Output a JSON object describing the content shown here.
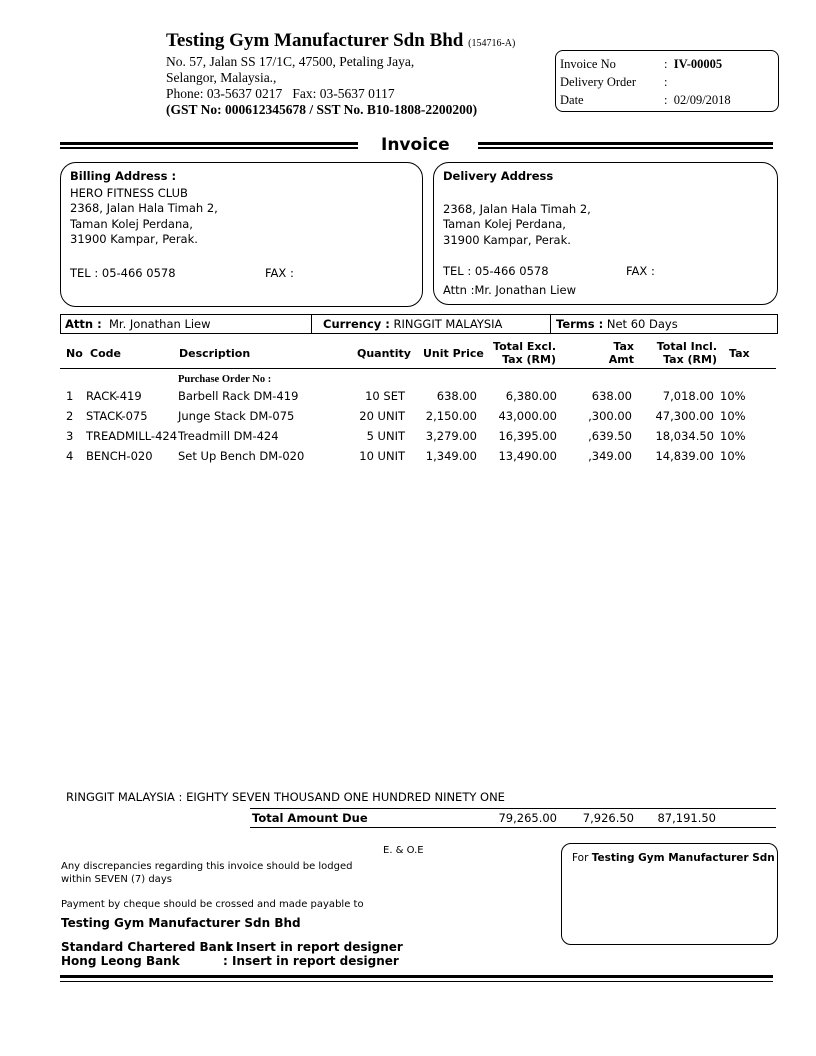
{
  "company": {
    "name": "Testing Gym Manufacturer Sdn Bhd",
    "reg_no": "(154716-A)",
    "address_1": "No. 57, Jalan SS 17/1C, 47500, Petaling Jaya,",
    "address_2": "Selangor, Malaysia.,",
    "phone_fax": "Phone: 03-5637 0217   Fax: 03-5637 0117",
    "tax_ids": "(GST No: 000612345678 / SST No. B10-1808-2200200)"
  },
  "info": {
    "invoice_no_label": "Invoice No",
    "invoice_no": "IV-00005",
    "delivery_order_label": "Delivery Order",
    "delivery_order": "",
    "date_label": "Date",
    "date": "02/09/2018",
    "colon": ":"
  },
  "title": "Invoice",
  "billing": {
    "label": "Billing Address :",
    "name": "HERO FITNESS CLUB",
    "line1": "2368, Jalan Hala Timah 2,",
    "line2": "Taman Kolej Perdana,",
    "line3": "31900 Kampar, Perak.",
    "tel": "TEL : 05-466 0578",
    "fax": "FAX :"
  },
  "delivery": {
    "label": "Delivery Address",
    "line1": "2368, Jalan Hala Timah 2,",
    "line2": "Taman Kolej Perdana,",
    "line3": "31900 Kampar, Perak.",
    "tel": "TEL : 05-466 0578",
    "fax": "FAX :",
    "attn": "Attn :Mr. Jonathan Liew"
  },
  "summary": {
    "attn_label": "Attn :",
    "attn": "Mr. Jonathan Liew",
    "currency_label": "Currency :",
    "currency": "RINGGIT MALAYSIA",
    "terms_label": "Terms :",
    "terms": "Net 60 Days"
  },
  "table": {
    "headers": {
      "no": "No",
      "code": "Code",
      "description": "Description",
      "quantity": "Quantity",
      "unit_price": "Unit Price",
      "total_excl_1": "Total Excl.",
      "total_excl_2": "Tax (RM)",
      "tax_amt_1": "Tax",
      "tax_amt_2": "Amt",
      "total_incl_1": "Total Incl.",
      "total_incl_2": "Tax (RM)",
      "tax": "Tax"
    },
    "po_label": "Purchase Order No :",
    "rows": [
      {
        "no": "1",
        "code": "RACK-419",
        "description": "Barbell Rack DM-419",
        "quantity": "10 SET",
        "unit_price": "638.00",
        "total_excl": "6,380.00",
        "tax_amt": "638.00",
        "total_incl": "7,018.00",
        "tax": "10%"
      },
      {
        "no": "2",
        "code": "STACK-075",
        "description": "Junge Stack DM-075",
        "quantity": "20 UNIT",
        "unit_price": "2,150.00",
        "total_excl": "43,000.00",
        "tax_amt": ",300.00",
        "total_incl": "47,300.00",
        "tax": "10%"
      },
      {
        "no": "3",
        "code": "TREADMILL-424",
        "description": "Treadmill DM-424",
        "quantity": "5 UNIT",
        "unit_price": "3,279.00",
        "total_excl": "16,395.00",
        "tax_amt": ",639.50",
        "total_incl": "18,034.50",
        "tax": "10%"
      },
      {
        "no": "4",
        "code": "BENCH-020",
        "description": "Set Up Bench DM-020",
        "quantity": "10 UNIT",
        "unit_price": "1,349.00",
        "total_excl": "13,490.00",
        "tax_amt": ",349.00",
        "total_incl": "14,839.00",
        "tax": "10%"
      }
    ]
  },
  "totals": {
    "amount_words": "RINGGIT MALAYSIA : EIGHTY SEVEN THOUSAND ONE HUNDRED NINETY ONE",
    "label": "Total Amount Due",
    "excl": "79,265.00",
    "tax": "7,926.50",
    "incl": "87,191.50"
  },
  "footer": {
    "eoe": "E. & O.E",
    "discrepancy_1": "Any discrepancies regarding this invoice should be lodged",
    "discrepancy_2": "within SEVEN (7) days",
    "cheque": "Payment by cheque should be crossed and made payable to",
    "payee": "Testing Gym Manufacturer Sdn Bhd",
    "bank1": "Standard Chartered Bank",
    "bank1_val": ":  Insert in report designer",
    "bank2": "Hong Leong Bank",
    "bank2_val": ":  Insert in report designer",
    "for_label": "For",
    "for_company": "Testing Gym Manufacturer Sdn I"
  }
}
